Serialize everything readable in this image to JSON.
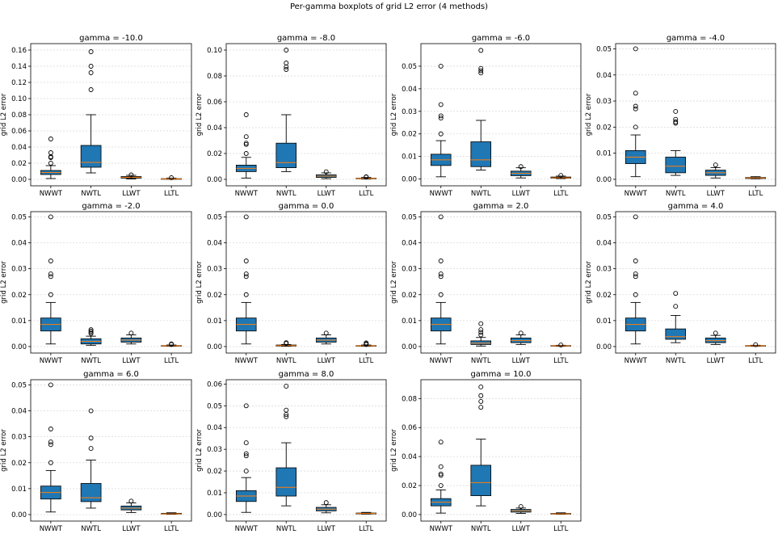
{
  "suptitle": "Per-gamma boxplots of grid L2 error (4 methods)",
  "colors": {
    "box": "#1f77b4",
    "median": "#ff7f0e",
    "grid": "#d9d9d9"
  },
  "chart_data": [
    {
      "type": "box",
      "title": "gamma = -10.0",
      "ylabel": "grid L2 error",
      "ylim": [
        -0.008,
        0.168
      ],
      "yticks": [
        0,
        0.02,
        0.04,
        0.06,
        0.08,
        0.1,
        0.12,
        0.14,
        0.16
      ],
      "yticklabels": [
        "0.00",
        "0.02",
        "0.04",
        "0.06",
        "0.08",
        "0.10",
        "0.12",
        "0.14",
        "0.16"
      ],
      "categories": [
        "NWWT",
        "NWTL",
        "LLWT",
        "LLTL"
      ],
      "boxes": [
        {
          "whislo": 0.001,
          "q1": 0.006,
          "med": 0.0085,
          "q3": 0.011,
          "whishi": 0.017,
          "fliers": [
            0.02,
            0.027,
            0.028,
            0.033,
            0.05
          ]
        },
        {
          "whislo": 0.008,
          "q1": 0.015,
          "med": 0.021,
          "q3": 0.042,
          "whishi": 0.08,
          "fliers": [
            0.111,
            0.132,
            0.14,
            0.158
          ]
        },
        {
          "whislo": 0.0005,
          "q1": 0.0015,
          "med": 0.0025,
          "q3": 0.0035,
          "whishi": 0.005,
          "fliers": [
            0.0055
          ]
        },
        {
          "whislo": 0.0002,
          "q1": 0.0004,
          "med": 0.0006,
          "q3": 0.0009,
          "whishi": 0.0015,
          "fliers": [
            0.002
          ]
        }
      ]
    },
    {
      "type": "box",
      "title": "gamma = -8.0",
      "ylabel": "grid L2 error",
      "ylim": [
        -0.005,
        0.105
      ],
      "yticks": [
        0,
        0.02,
        0.04,
        0.06,
        0.08,
        0.1
      ],
      "yticklabels": [
        "0.00",
        "0.02",
        "0.04",
        "0.06",
        "0.08",
        "0.10"
      ],
      "categories": [
        "NWWT",
        "NWTL",
        "LLWT",
        "LLTL"
      ],
      "boxes": [
        {
          "whislo": 0.001,
          "q1": 0.006,
          "med": 0.0085,
          "q3": 0.011,
          "whishi": 0.017,
          "fliers": [
            0.02,
            0.027,
            0.028,
            0.033,
            0.05
          ]
        },
        {
          "whislo": 0.006,
          "q1": 0.009,
          "med": 0.013,
          "q3": 0.028,
          "whishi": 0.05,
          "fliers": [
            0.085,
            0.087,
            0.09,
            0.1
          ]
        },
        {
          "whislo": 0.0005,
          "q1": 0.0015,
          "med": 0.0025,
          "q3": 0.0035,
          "whishi": 0.005,
          "fliers": [
            0.0058
          ]
        },
        {
          "whislo": 0.0002,
          "q1": 0.0004,
          "med": 0.0006,
          "q3": 0.0009,
          "whishi": 0.0015,
          "fliers": [
            0.0018,
            0.002
          ]
        }
      ]
    },
    {
      "type": "box",
      "title": "gamma = -6.0",
      "ylabel": "grid L2 error",
      "ylim": [
        -0.003,
        0.06
      ],
      "yticks": [
        0,
        0.01,
        0.02,
        0.03,
        0.04,
        0.05
      ],
      "yticklabels": [
        "0.00",
        "0.01",
        "0.02",
        "0.03",
        "0.04",
        "0.05"
      ],
      "categories": [
        "NWWT",
        "NWTL",
        "LLWT",
        "LLTL"
      ],
      "boxes": [
        {
          "whislo": 0.001,
          "q1": 0.006,
          "med": 0.0085,
          "q3": 0.011,
          "whishi": 0.017,
          "fliers": [
            0.02,
            0.027,
            0.028,
            0.033,
            0.05
          ]
        },
        {
          "whislo": 0.004,
          "q1": 0.0055,
          "med": 0.0085,
          "q3": 0.0165,
          "whishi": 0.026,
          "fliers": [
            0.047,
            0.048,
            0.049,
            0.057
          ]
        },
        {
          "whislo": 0.0005,
          "q1": 0.0015,
          "med": 0.0025,
          "q3": 0.0035,
          "whishi": 0.005,
          "fliers": [
            0.0055
          ]
        },
        {
          "whislo": 0.0002,
          "q1": 0.0004,
          "med": 0.0006,
          "q3": 0.0009,
          "whishi": 0.0013,
          "fliers": [
            0.0016
          ]
        }
      ]
    },
    {
      "type": "box",
      "title": "gamma = -4.0",
      "ylabel": "grid L2 error",
      "ylim": [
        -0.0025,
        0.052
      ],
      "yticks": [
        0,
        0.01,
        0.02,
        0.03,
        0.04,
        0.05
      ],
      "yticklabels": [
        "0.00",
        "0.01",
        "0.02",
        "0.03",
        "0.04",
        "0.05"
      ],
      "categories": [
        "NWWT",
        "NWTL",
        "LLWT",
        "LLTL"
      ],
      "boxes": [
        {
          "whislo": 0.001,
          "q1": 0.006,
          "med": 0.0085,
          "q3": 0.011,
          "whishi": 0.017,
          "fliers": [
            0.02,
            0.027,
            0.028,
            0.033,
            0.05
          ]
        },
        {
          "whislo": 0.0015,
          "q1": 0.0025,
          "med": 0.005,
          "q3": 0.0085,
          "whishi": 0.011,
          "fliers": [
            0.0215,
            0.022,
            0.023,
            0.026
          ]
        },
        {
          "whislo": 0.0005,
          "q1": 0.0015,
          "med": 0.0025,
          "q3": 0.0035,
          "whishi": 0.0045,
          "fliers": [
            0.0055
          ]
        },
        {
          "whislo": 0.0002,
          "q1": 0.0003,
          "med": 0.0005,
          "q3": 0.0007,
          "whishi": 0.001,
          "fliers": []
        }
      ]
    },
    {
      "type": "box",
      "title": "gamma = -2.0",
      "ylabel": "grid L2 error",
      "ylim": [
        -0.0025,
        0.052
      ],
      "yticks": [
        0,
        0.01,
        0.02,
        0.03,
        0.04,
        0.05
      ],
      "yticklabels": [
        "0.00",
        "0.01",
        "0.02",
        "0.03",
        "0.04",
        "0.05"
      ],
      "categories": [
        "NWWT",
        "NWTL",
        "LLWT",
        "LLTL"
      ],
      "boxes": [
        {
          "whislo": 0.001,
          "q1": 0.006,
          "med": 0.0085,
          "q3": 0.011,
          "whishi": 0.017,
          "fliers": [
            0.02,
            0.027,
            0.028,
            0.033,
            0.05
          ]
        },
        {
          "whislo": 0.0005,
          "q1": 0.001,
          "med": 0.002,
          "q3": 0.003,
          "whishi": 0.004,
          "fliers": [
            0.005,
            0.0055,
            0.006,
            0.0065
          ]
        },
        {
          "whislo": 0.001,
          "q1": 0.0017,
          "med": 0.0025,
          "q3": 0.0033,
          "whishi": 0.0045,
          "fliers": [
            0.0052
          ]
        },
        {
          "whislo": 0.0001,
          "q1": 0.0002,
          "med": 0.0003,
          "q3": 0.0004,
          "whishi": 0.0006,
          "fliers": [
            0.0008,
            0.001
          ]
        }
      ]
    },
    {
      "type": "box",
      "title": "gamma = 0.0",
      "ylabel": "grid L2 error",
      "ylim": [
        -0.0025,
        0.052
      ],
      "yticks": [
        0,
        0.01,
        0.02,
        0.03,
        0.04,
        0.05
      ],
      "yticklabels": [
        "0.00",
        "0.01",
        "0.02",
        "0.03",
        "0.04",
        "0.05"
      ],
      "categories": [
        "NWWT",
        "NWTL",
        "LLWT",
        "LLTL"
      ],
      "boxes": [
        {
          "whislo": 0.001,
          "q1": 0.006,
          "med": 0.0085,
          "q3": 0.011,
          "whishi": 0.017,
          "fliers": [
            0.02,
            0.027,
            0.028,
            0.033,
            0.05
          ]
        },
        {
          "whislo": 0.0001,
          "q1": 0.0002,
          "med": 0.0004,
          "q3": 0.0006,
          "whishi": 0.0008,
          "fliers": [
            0.0012,
            0.0015
          ]
        },
        {
          "whislo": 0.001,
          "q1": 0.0017,
          "med": 0.0025,
          "q3": 0.0033,
          "whishi": 0.0045,
          "fliers": [
            0.0052
          ]
        },
        {
          "whislo": 0.0001,
          "q1": 0.0002,
          "med": 0.0003,
          "q3": 0.0004,
          "whishi": 0.0006,
          "fliers": [
            0.0008,
            0.0011,
            0.0014
          ]
        }
      ]
    },
    {
      "type": "box",
      "title": "gamma = 2.0",
      "ylabel": "grid L2 error",
      "ylim": [
        -0.0025,
        0.052
      ],
      "yticks": [
        0,
        0.01,
        0.02,
        0.03,
        0.04,
        0.05
      ],
      "yticklabels": [
        "0.00",
        "0.01",
        "0.02",
        "0.03",
        "0.04",
        "0.05"
      ],
      "categories": [
        "NWWT",
        "NWTL",
        "LLWT",
        "LLTL"
      ],
      "boxes": [
        {
          "whislo": 0.001,
          "q1": 0.006,
          "med": 0.0085,
          "q3": 0.011,
          "whishi": 0.017,
          "fliers": [
            0.02,
            0.027,
            0.028,
            0.033,
            0.05
          ]
        },
        {
          "whislo": 0.0002,
          "q1": 0.0008,
          "med": 0.0013,
          "q3": 0.0022,
          "whishi": 0.0035,
          "fliers": [
            0.0045,
            0.0055,
            0.0065,
            0.0088
          ]
        },
        {
          "whislo": 0.0008,
          "q1": 0.0015,
          "med": 0.0023,
          "q3": 0.0033,
          "whishi": 0.0045,
          "fliers": [
            0.0052
          ]
        },
        {
          "whislo": 0.0001,
          "q1": 0.0002,
          "med": 0.0003,
          "q3": 0.0004,
          "whishi": 0.0005,
          "fliers": [
            0.0006
          ]
        }
      ]
    },
    {
      "type": "box",
      "title": "gamma = 4.0",
      "ylabel": "grid L2 error",
      "ylim": [
        -0.0025,
        0.052
      ],
      "yticks": [
        0,
        0.01,
        0.02,
        0.03,
        0.04,
        0.05
      ],
      "yticklabels": [
        "0.00",
        "0.01",
        "0.02",
        "0.03",
        "0.04",
        "0.05"
      ],
      "categories": [
        "NWWT",
        "NWTL",
        "LLWT",
        "LLTL"
      ],
      "boxes": [
        {
          "whislo": 0.001,
          "q1": 0.006,
          "med": 0.0085,
          "q3": 0.011,
          "whishi": 0.017,
          "fliers": [
            0.02,
            0.027,
            0.028,
            0.033,
            0.05
          ]
        },
        {
          "whislo": 0.0015,
          "q1": 0.0028,
          "med": 0.0038,
          "q3": 0.0068,
          "whishi": 0.012,
          "fliers": [
            0.0155,
            0.0205
          ]
        },
        {
          "whislo": 0.0008,
          "q1": 0.0015,
          "med": 0.0023,
          "q3": 0.0033,
          "whishi": 0.0043,
          "fliers": [
            0.0052
          ]
        },
        {
          "whislo": 0.0001,
          "q1": 0.0002,
          "med": 0.0003,
          "q3": 0.0004,
          "whishi": 0.0005,
          "fliers": [
            0.0007
          ]
        }
      ]
    },
    {
      "type": "box",
      "title": "gamma = 6.0",
      "ylabel": "grid L2 error",
      "ylim": [
        -0.0025,
        0.052
      ],
      "yticks": [
        0,
        0.01,
        0.02,
        0.03,
        0.04,
        0.05
      ],
      "yticklabels": [
        "0.00",
        "0.01",
        "0.02",
        "0.03",
        "0.04",
        "0.05"
      ],
      "categories": [
        "NWWT",
        "NWTL",
        "LLWT",
        "LLTL"
      ],
      "boxes": [
        {
          "whislo": 0.001,
          "q1": 0.006,
          "med": 0.0085,
          "q3": 0.011,
          "whishi": 0.017,
          "fliers": [
            0.02,
            0.027,
            0.028,
            0.033,
            0.05
          ]
        },
        {
          "whislo": 0.0025,
          "q1": 0.005,
          "med": 0.0065,
          "q3": 0.012,
          "whishi": 0.021,
          "fliers": [
            0.0255,
            0.0295,
            0.04
          ]
        },
        {
          "whislo": 0.0008,
          "q1": 0.0018,
          "med": 0.0025,
          "q3": 0.0033,
          "whishi": 0.0045,
          "fliers": [
            0.0052
          ]
        },
        {
          "whislo": 0.0001,
          "q1": 0.0002,
          "med": 0.0003,
          "q3": 0.0005,
          "whishi": 0.0007,
          "fliers": []
        }
      ]
    },
    {
      "type": "box",
      "title": "gamma = 8.0",
      "ylabel": "grid L2 error",
      "ylim": [
        -0.003,
        0.062
      ],
      "yticks": [
        0,
        0.01,
        0.02,
        0.03,
        0.04,
        0.05,
        0.06
      ],
      "yticklabels": [
        "0.00",
        "0.01",
        "0.02",
        "0.03",
        "0.04",
        "0.05",
        "0.06"
      ],
      "categories": [
        "NWWT",
        "NWTL",
        "LLWT",
        "LLTL"
      ],
      "boxes": [
        {
          "whislo": 0.001,
          "q1": 0.006,
          "med": 0.0085,
          "q3": 0.011,
          "whishi": 0.017,
          "fliers": [
            0.02,
            0.027,
            0.028,
            0.033,
            0.05
          ]
        },
        {
          "whislo": 0.004,
          "q1": 0.0085,
          "med": 0.0125,
          "q3": 0.0215,
          "whishi": 0.033,
          "fliers": [
            0.045,
            0.046,
            0.048,
            0.059
          ]
        },
        {
          "whislo": 0.0008,
          "q1": 0.0017,
          "med": 0.0025,
          "q3": 0.0033,
          "whishi": 0.0045,
          "fliers": [
            0.0055
          ]
        },
        {
          "whislo": 0.0002,
          "q1": 0.0003,
          "med": 0.0005,
          "q3": 0.0007,
          "whishi": 0.001,
          "fliers": []
        }
      ]
    },
    {
      "type": "box",
      "title": "gamma = 10.0",
      "ylabel": "grid L2 error",
      "ylim": [
        -0.0045,
        0.093
      ],
      "yticks": [
        0,
        0.02,
        0.04,
        0.06,
        0.08
      ],
      "yticklabels": [
        "0.00",
        "0.02",
        "0.04",
        "0.06",
        "0.08"
      ],
      "categories": [
        "NWWT",
        "NWTL",
        "LLWT",
        "LLTL"
      ],
      "boxes": [
        {
          "whislo": 0.001,
          "q1": 0.006,
          "med": 0.0085,
          "q3": 0.011,
          "whishi": 0.017,
          "fliers": [
            0.02,
            0.027,
            0.028,
            0.033,
            0.05
          ]
        },
        {
          "whislo": 0.006,
          "q1": 0.013,
          "med": 0.022,
          "q3": 0.034,
          "whishi": 0.052,
          "fliers": [
            0.074,
            0.078,
            0.082,
            0.088
          ]
        },
        {
          "whislo": 0.0008,
          "q1": 0.0017,
          "med": 0.0025,
          "q3": 0.0035,
          "whishi": 0.0045,
          "fliers": [
            0.0055
          ]
        },
        {
          "whislo": 0.0002,
          "q1": 0.0003,
          "med": 0.0005,
          "q3": 0.0008,
          "whishi": 0.0012,
          "fliers": []
        }
      ]
    }
  ]
}
